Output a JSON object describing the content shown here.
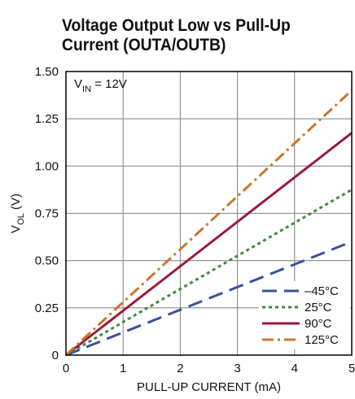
{
  "title": {
    "line1": "Voltage Output Low vs Pull-Up",
    "line2": "Current (OUTA/OUTB)"
  },
  "chart_data": {
    "type": "line",
    "xlabel": "PULL-UP CURRENT (mA)",
    "ylabel_main": "V",
    "ylabel_sub": "OL",
    "ylabel_unit": " (V)",
    "xlim": [
      0,
      5
    ],
    "ylim": [
      0,
      1.5
    ],
    "x_ticks": [
      "0",
      "1",
      "2",
      "3",
      "4",
      "5"
    ],
    "y_ticks": [
      "0",
      "0.25",
      "0.50",
      "0.75",
      "1.00",
      "1.25",
      "1.50"
    ],
    "grid": true,
    "annotation": {
      "main": "V",
      "sub": "IN",
      "rest": " = 12V"
    },
    "legend_position": "bottom-right",
    "series": [
      {
        "name": "–45°C",
        "color": "#3a4f9e",
        "dash": "long-dash",
        "x": [
          0,
          5
        ],
        "y": [
          0,
          0.6
        ]
      },
      {
        "name": "25°C",
        "color": "#3b8a3e",
        "dash": "dotted",
        "x": [
          0,
          5
        ],
        "y": [
          0,
          0.875
        ]
      },
      {
        "name": "90°C",
        "color": "#9b1b3a",
        "dash": "solid",
        "x": [
          0,
          5
        ],
        "y": [
          0,
          1.175
        ]
      },
      {
        "name": "125°C",
        "color": "#c8782a",
        "dash": "dash-dot",
        "x": [
          0,
          5
        ],
        "y": [
          0,
          1.4
        ]
      }
    ]
  }
}
